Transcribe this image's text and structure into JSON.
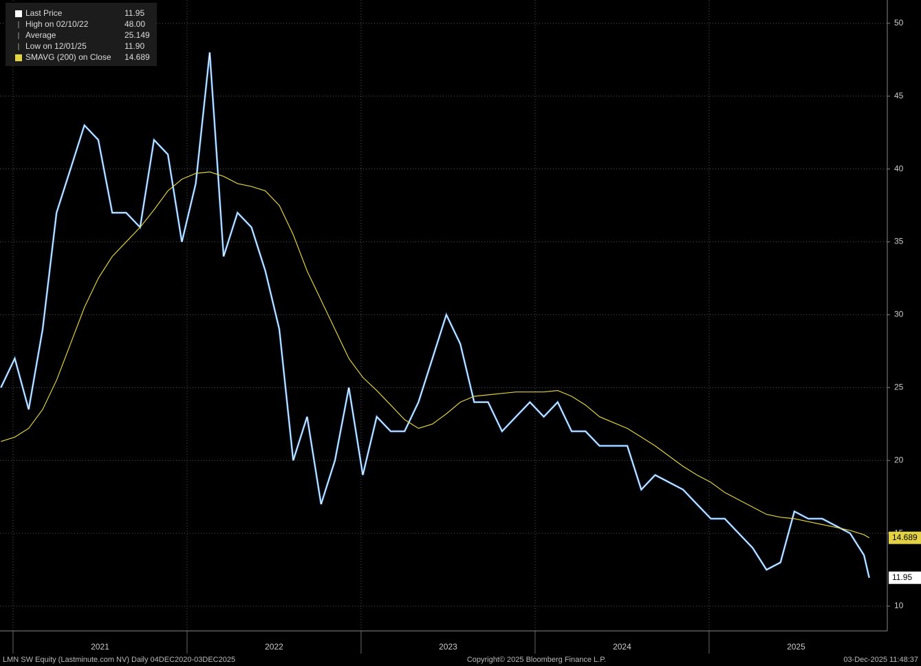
{
  "chart_data": {
    "type": "line",
    "footer_left": "LMN SW Equity (Lastminute.com NV) Daily 04DEC2020-03DEC2025",
    "footer_center": "Copyright© 2025 Bloomberg Finance L.P.",
    "footer_right": "03-Dec-2025 11:48:37",
    "legend_items": [
      {
        "label": "Last Price",
        "value": 11.95
      },
      {
        "label": "High on 02/10/22",
        "value": {
          "value": 48,
          "label": "48.00"
        }
      },
      {
        "label": "Average",
        "value": 25.149
      },
      {
        "label": "Low on 12/01/25",
        "value": {
          "value": 11.9,
          "label": "11.90"
        }
      },
      {
        "label": "SMAVG (200)  on Close",
        "value": 14.689
      }
    ],
    "x": [
      2020.93,
      2021.01,
      2021.09,
      2021.17,
      2021.25,
      2021.33,
      2021.41,
      2021.49,
      2021.57,
      2021.65,
      2021.73,
      2021.81,
      2021.89,
      2021.97,
      2022.05,
      2022.13,
      2022.21,
      2022.29,
      2022.37,
      2022.45,
      2022.53,
      2022.61,
      2022.69,
      2022.77,
      2022.85,
      2022.93,
      2023.01,
      2023.09,
      2023.17,
      2023.25,
      2023.33,
      2023.41,
      2023.49,
      2023.57,
      2023.65,
      2023.73,
      2023.81,
      2023.89,
      2023.97,
      2024.05,
      2024.13,
      2024.21,
      2024.29,
      2024.37,
      2024.45,
      2024.53,
      2024.61,
      2024.69,
      2024.77,
      2024.85,
      2024.93,
      2025.01,
      2025.09,
      2025.17,
      2025.25,
      2025.33,
      2025.41,
      2025.49,
      2025.57,
      2025.65,
      2025.73,
      2025.81,
      2025.89,
      2025.92
    ],
    "series": [
      {
        "name": "Last Price",
        "color": "#ffffff",
        "values": [
          25,
          27,
          23.5,
          29,
          37,
          40,
          43,
          42,
          37,
          37,
          36,
          42,
          41,
          35,
          39,
          48,
          34,
          37,
          36,
          33,
          29,
          20,
          23,
          17,
          20,
          25,
          19,
          23,
          22,
          22,
          24,
          27,
          30,
          28,
          24,
          24,
          22,
          23,
          24,
          23,
          24,
          22,
          22,
          21,
          21,
          21,
          18,
          19,
          18.5,
          18,
          17,
          16,
          16,
          15,
          14,
          12.5,
          13,
          16.5,
          16,
          16,
          15.5,
          15,
          13.5,
          11.95
        ]
      },
      {
        "name": "SMAVG (200)  on Close",
        "color": "#e3d243",
        "values": [
          21.3,
          21.6,
          22.2,
          23.5,
          25.5,
          28,
          30.5,
          32.5,
          34,
          35,
          36,
          37.2,
          38.5,
          39.3,
          39.7,
          39.8,
          39.5,
          39,
          38.8,
          38.5,
          37.5,
          35.5,
          33,
          31,
          29,
          27,
          25.7,
          24.8,
          23.8,
          22.8,
          22.2,
          22.5,
          23.2,
          24,
          24.4,
          24.5,
          24.6,
          24.7,
          24.7,
          24.7,
          24.8,
          24.4,
          23.8,
          23,
          22.6,
          22.2,
          21.6,
          21,
          20.3,
          19.6,
          19,
          18.5,
          17.8,
          17.3,
          16.8,
          16.3,
          16.1,
          16,
          15.8,
          15.6,
          15.4,
          15.2,
          14.9,
          14.689
        ]
      }
    ],
    "xlim": [
      2020.925,
      2026.024
    ],
    "xticks": [
      2021,
      2022,
      2023,
      2024,
      2025
    ],
    "ylim": [
      8.3,
      51.6
    ],
    "yticks": [
      10,
      15,
      20,
      25,
      30,
      35,
      40,
      45,
      50
    ],
    "grid": true
  }
}
